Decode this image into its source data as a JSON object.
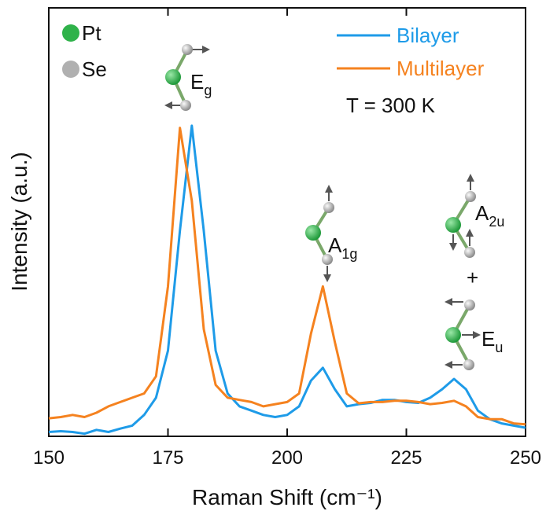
{
  "chart_data": {
    "type": "line",
    "x_label": "Raman Shift (cm⁻¹)",
    "y_label": "Intensity (a.u.)",
    "x": [
      150,
      152.5,
      155,
      157.5,
      160,
      162.5,
      165,
      167.5,
      170,
      172.5,
      175,
      177.5,
      180,
      182.5,
      185,
      187.5,
      190,
      192.5,
      195,
      197.5,
      200,
      202.5,
      205,
      207.5,
      210,
      212.5,
      215,
      217.5,
      220,
      222.5,
      225,
      227.5,
      230,
      232.5,
      235,
      237.5,
      240,
      242.5,
      245,
      247.5,
      250
    ],
    "series": [
      {
        "name": "Bilayer",
        "color": "#1e9be8",
        "values": [
          1.0,
          1.2,
          1.0,
          0.6,
          1.5,
          1.0,
          1.8,
          2.5,
          5,
          9,
          20,
          48,
          72.5,
          48,
          20,
          10,
          7,
          6,
          5,
          4.5,
          5,
          7,
          13,
          16,
          11,
          7,
          7.5,
          7.8,
          8.5,
          8.5,
          8,
          7.8,
          9,
          11,
          13.4,
          11,
          6,
          4,
          3,
          2.5,
          2
        ]
      },
      {
        "name": "Multilayer",
        "color": "#f5821f",
        "values": [
          4.2,
          4.5,
          5,
          4.5,
          5.5,
          7,
          8,
          9,
          10,
          14,
          35,
          72,
          55,
          25,
          12,
          9,
          8.5,
          8,
          7,
          7.5,
          8,
          10,
          24,
          35,
          22,
          10,
          7.7,
          8,
          8,
          8.3,
          8.3,
          8,
          7.5,
          7.8,
          8.3,
          7,
          4.5,
          4,
          4,
          3,
          2.8
        ]
      }
    ],
    "xlim": [
      150,
      250
    ],
    "xticks": [
      150,
      175,
      200,
      225,
      250
    ],
    "ylim": [
      0,
      100
    ],
    "legend": "upper right",
    "atoms": [
      {
        "name": "Pt",
        "color": "#2fb24a"
      },
      {
        "name": "Se",
        "color": "#b0b0b0"
      }
    ],
    "condition": "T = 300 K",
    "modes": [
      {
        "text": "E",
        "sub": "g"
      },
      {
        "text": "A",
        "sub": "1g"
      },
      {
        "text": "A",
        "sub": "2u"
      },
      {
        "text": "+"
      },
      {
        "text": "E",
        "sub": "u"
      }
    ]
  }
}
